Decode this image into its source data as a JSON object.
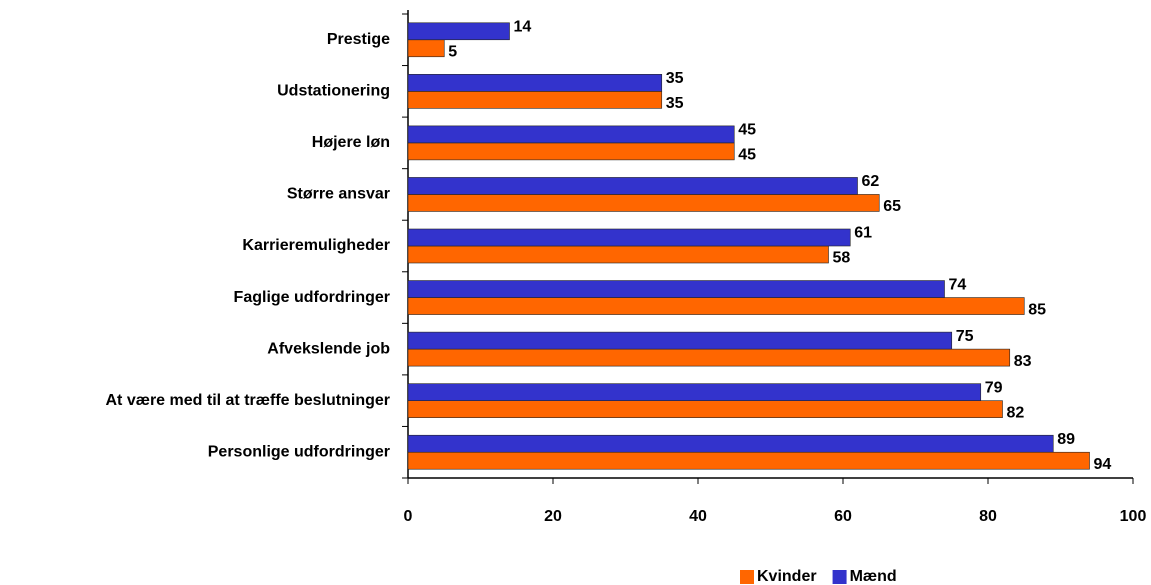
{
  "chart_data": {
    "type": "barh",
    "categories": [
      "Prestige",
      "Udstationering",
      "Højere løn",
      "Større ansvar",
      "Karrieremuligheder",
      "Faglige udfordringer",
      "Afvekslende job",
      "At være med til at træffe beslutninger",
      "Personlige udfordringer"
    ],
    "series": [
      {
        "name": "Kvinder",
        "color": "#ff6600",
        "values": [
          5,
          35,
          45,
          65,
          58,
          85,
          83,
          82,
          94
        ]
      },
      {
        "name": "Mænd",
        "color": "#3333cc",
        "values": [
          14,
          35,
          45,
          62,
          61,
          74,
          75,
          79,
          89
        ]
      }
    ],
    "xlim": [
      0,
      100
    ],
    "xticks": [
      0,
      20,
      40,
      60,
      80,
      100
    ],
    "legend": "bottom"
  }
}
